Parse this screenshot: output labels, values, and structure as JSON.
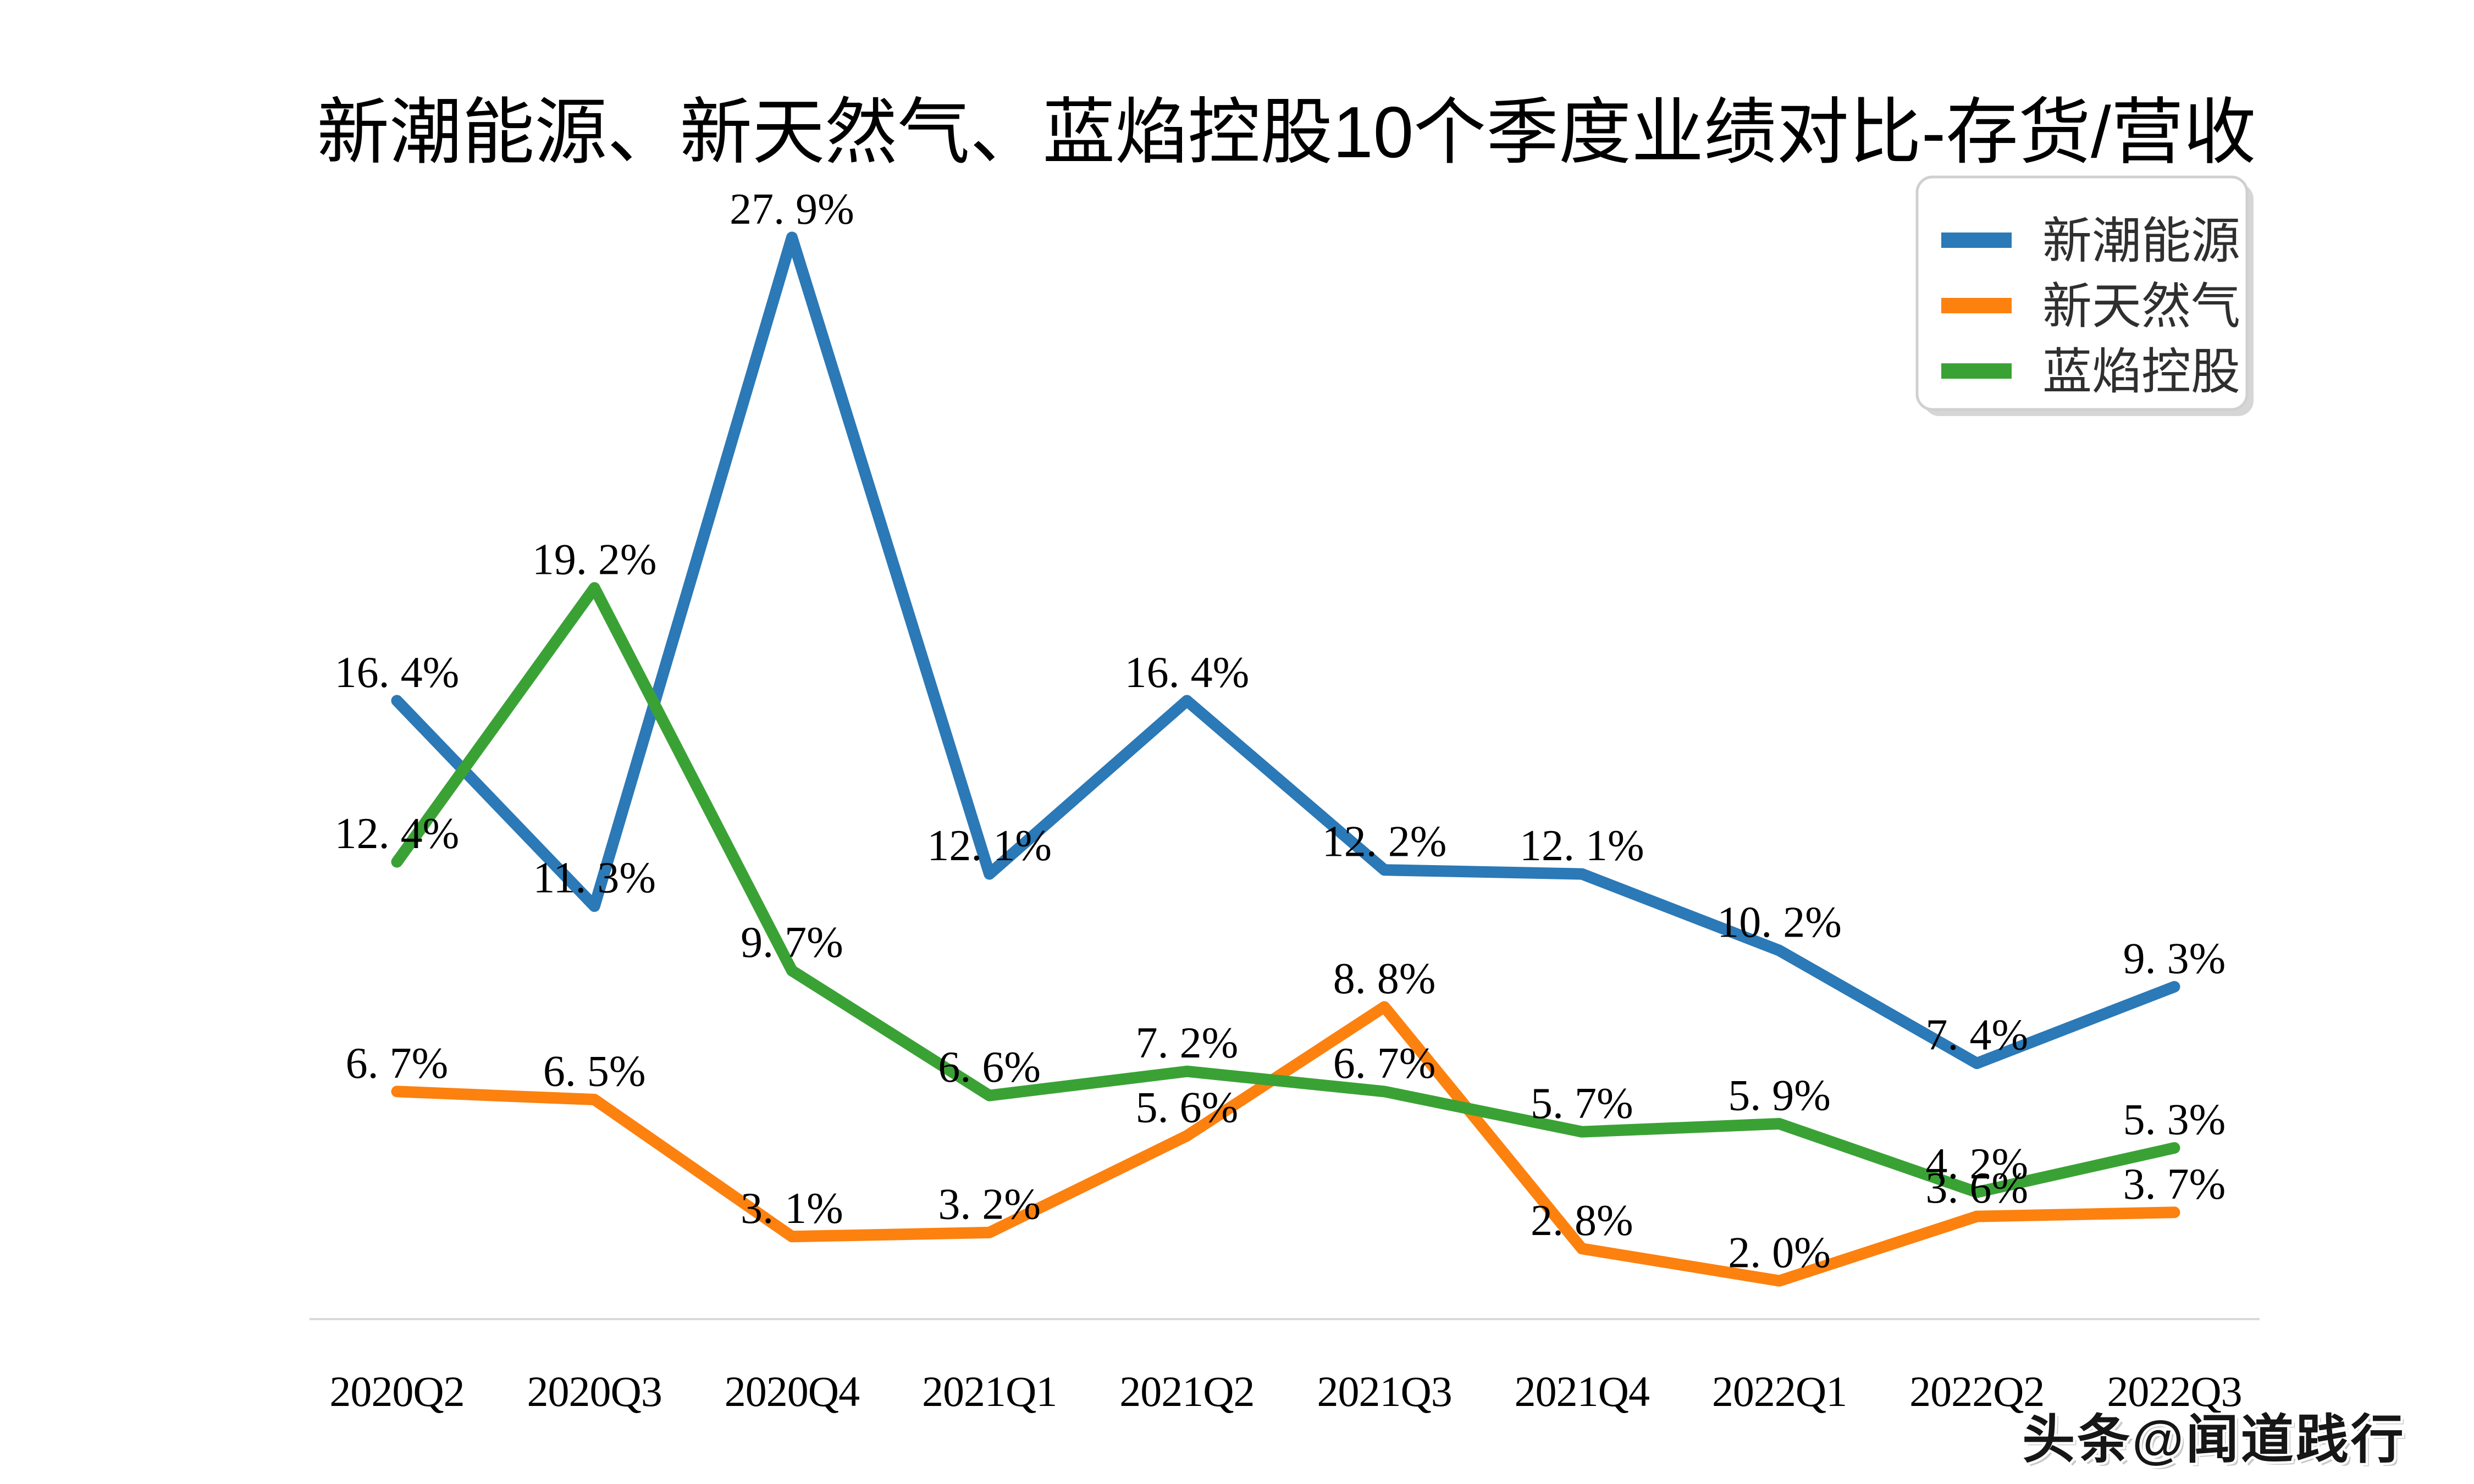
{
  "title": "新潮能源、新天然气、蓝焰控股10个季度业绩对比-存货/营收",
  "watermark": {
    "text": "头条@闻道践行"
  },
  "legend": {
    "position": "top-right",
    "items": [
      {
        "label": "新潮能源",
        "color": "#2b79b7"
      },
      {
        "label": "新天然气",
        "color": "#fc810f"
      },
      {
        "label": "蓝焰控股",
        "color": "#3aa235"
      }
    ]
  },
  "axis": {
    "baseline_color": "#d9d9d9",
    "tick_label_color": "#000000"
  },
  "chart_data": {
    "type": "line",
    "title": "新潮能源、新天然气、蓝焰控股10个季度业绩对比-存货/营收",
    "categories": [
      "2020Q2",
      "2020Q3",
      "2020Q4",
      "2021Q1",
      "2021Q2",
      "2021Q3",
      "2021Q4",
      "2022Q1",
      "2022Q2",
      "2022Q3"
    ],
    "series": [
      {
        "name": "新潮能源",
        "color": "#2b79b7",
        "values": [
          16.4,
          11.3,
          27.9,
          12.1,
          16.4,
          12.2,
          12.1,
          10.2,
          7.4,
          9.3
        ],
        "labels": [
          "16. 4%",
          "11. 3%",
          "27. 9%",
          "12. 1%",
          "16. 4%",
          "12. 2%",
          "12. 1%",
          "10. 2%",
          "7. 4%",
          "9. 3%"
        ]
      },
      {
        "name": "新天然气",
        "color": "#fc810f",
        "values": [
          6.7,
          6.5,
          3.1,
          3.2,
          5.6,
          8.8,
          2.8,
          2.0,
          3.6,
          3.7
        ],
        "labels": [
          "6. 7%",
          "6. 5%",
          "3. 1%",
          "3. 2%",
          "5. 6%",
          "8. 8%",
          "2. 8%",
          "2. 0%",
          "3. 6%",
          "3. 7%"
        ]
      },
      {
        "name": "蓝焰控股",
        "color": "#3aa235",
        "values": [
          12.4,
          19.2,
          9.7,
          6.6,
          7.2,
          6.7,
          5.7,
          5.9,
          4.2,
          5.3
        ],
        "labels": [
          "12. 4%",
          "19. 2%",
          "9. 7%",
          "6. 6%",
          "7. 2%",
          "6. 7%",
          "5. 7%",
          "5. 9%",
          "4. 2%",
          "5. 3%"
        ]
      }
    ],
    "value_label_format": "x.x%",
    "ylim": [
      0,
      30
    ],
    "grid": false,
    "y_axis_shown": false,
    "legend_position": "top-right"
  }
}
